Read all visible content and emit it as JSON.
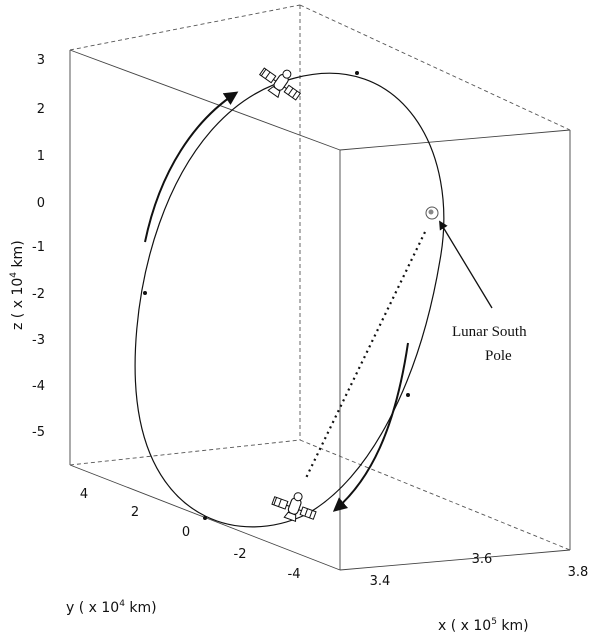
{
  "axes": {
    "z_label": "z ( x 10",
    "z_exp": "4",
    "z_unit": " km)",
    "y_label": "y ( x 10",
    "y_exp": "4",
    "y_unit": " km)",
    "x_label": "x ( x 10",
    "x_exp": "5",
    "x_unit": " km)",
    "z_ticks": [
      "3",
      "2",
      "1",
      "0",
      "-1",
      "-2",
      "-3",
      "-4",
      "-5"
    ],
    "y_ticks": [
      "4",
      "2",
      "0",
      "-2",
      "-4"
    ],
    "x_ticks": [
      "3.4",
      "3.6",
      "3.8"
    ]
  },
  "annotation": {
    "line1": "Lunar South",
    "line2": "Pole"
  },
  "icons": {
    "satellite_top": "satellite-icon",
    "satellite_bottom": "satellite-icon",
    "moon_south_pole": "lunar-south-pole-marker"
  }
}
